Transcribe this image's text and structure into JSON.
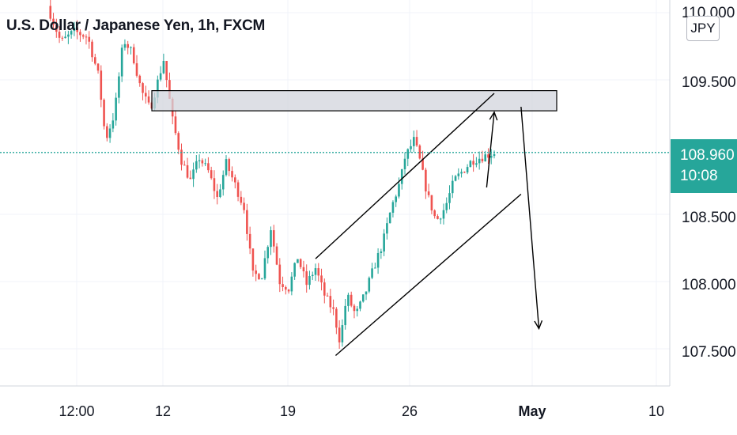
{
  "header": {
    "symbol_title": "U.S. Dollar / Japanese Yen, 1h, FXCM",
    "currency_button": "JPY"
  },
  "price_axis": {
    "labels": [
      "110.000",
      "109.500",
      "108.960",
      "108.500",
      "108.000",
      "107.500"
    ]
  },
  "time_axis": {
    "labels": [
      "12:00",
      "12",
      "19",
      "26",
      "May",
      "10"
    ]
  },
  "last_price": {
    "value": "108.960",
    "countdown": "10:08"
  },
  "colors": {
    "up": "#26a69a",
    "down": "#ef5350",
    "price_line": "#26a69a",
    "drawing": "#000000",
    "zone_fill": "#d1d4dc",
    "grid": "#f0f3fa"
  },
  "chart_data": {
    "type": "candlestick",
    "ylim": [
      107.25,
      110.05
    ],
    "yticks": [
      110.0,
      109.5,
      108.5,
      108.0,
      107.5
    ],
    "xticks": [
      "12:00",
      "12",
      "19",
      "26",
      "May",
      "10"
    ],
    "last_price": 108.96,
    "price_path": [
      {
        "t": 0.0,
        "p": 110.05
      },
      {
        "t": 0.03,
        "p": 109.78
      },
      {
        "t": 0.06,
        "p": 109.86
      },
      {
        "t": 0.09,
        "p": 109.82
      },
      {
        "t": 0.115,
        "p": 109.52
      },
      {
        "t": 0.13,
        "p": 109.05
      },
      {
        "t": 0.15,
        "p": 109.25
      },
      {
        "t": 0.17,
        "p": 109.8
      },
      {
        "t": 0.19,
        "p": 109.7
      },
      {
        "t": 0.21,
        "p": 109.42
      },
      {
        "t": 0.23,
        "p": 109.28
      },
      {
        "t": 0.26,
        "p": 109.65
      },
      {
        "t": 0.28,
        "p": 109.2
      },
      {
        "t": 0.3,
        "p": 108.9
      },
      {
        "t": 0.32,
        "p": 108.75
      },
      {
        "t": 0.34,
        "p": 108.92
      },
      {
        "t": 0.36,
        "p": 108.82
      },
      {
        "t": 0.38,
        "p": 108.62
      },
      {
        "t": 0.4,
        "p": 108.88
      },
      {
        "t": 0.42,
        "p": 108.72
      },
      {
        "t": 0.44,
        "p": 108.55
      },
      {
        "t": 0.46,
        "p": 108.05
      },
      {
        "t": 0.48,
        "p": 108.05
      },
      {
        "t": 0.5,
        "p": 108.4
      },
      {
        "t": 0.52,
        "p": 108.0
      },
      {
        "t": 0.54,
        "p": 107.95
      },
      {
        "t": 0.56,
        "p": 108.18
      },
      {
        "t": 0.58,
        "p": 107.98
      },
      {
        "t": 0.6,
        "p": 108.1
      },
      {
        "t": 0.62,
        "p": 107.9
      },
      {
        "t": 0.64,
        "p": 107.78
      },
      {
        "t": 0.655,
        "p": 107.55
      },
      {
        "t": 0.67,
        "p": 107.9
      },
      {
        "t": 0.69,
        "p": 107.75
      },
      {
        "t": 0.71,
        "p": 107.9
      },
      {
        "t": 0.73,
        "p": 108.1
      },
      {
        "t": 0.75,
        "p": 108.28
      },
      {
        "t": 0.77,
        "p": 108.55
      },
      {
        "t": 0.79,
        "p": 108.75
      },
      {
        "t": 0.8,
        "p": 108.92
      },
      {
        "t": 0.82,
        "p": 109.05
      },
      {
        "t": 0.83,
        "p": 108.95
      },
      {
        "t": 0.85,
        "p": 108.65
      },
      {
        "t": 0.87,
        "p": 108.45
      },
      {
        "t": 0.89,
        "p": 108.55
      },
      {
        "t": 0.91,
        "p": 108.75
      },
      {
        "t": 0.95,
        "p": 108.9
      },
      {
        "t": 1.0,
        "p": 108.96
      }
    ],
    "annotations": {
      "resistance_zone": {
        "from": 109.27,
        "to": 109.42
      },
      "channel_upper": [
        {
          "t": 0.6,
          "p": 108.17
        },
        {
          "t": 1.0,
          "p": 109.4
        }
      ],
      "channel_lower": [
        {
          "t": 0.645,
          "p": 107.45
        },
        {
          "t": 1.06,
          "p": 108.65
        }
      ],
      "projection_up": [
        {
          "t": 0.983,
          "p": 108.7
        },
        {
          "t": 1.0,
          "p": 109.26
        }
      ],
      "projection_down": [
        {
          "t": 1.06,
          "p": 109.3
        },
        {
          "t": 1.1,
          "p": 107.65
        }
      ]
    }
  }
}
